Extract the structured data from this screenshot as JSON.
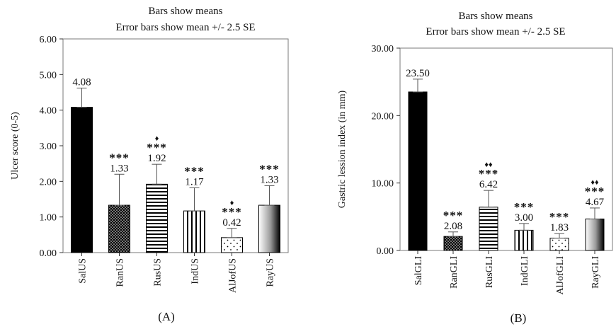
{
  "chart_data": [
    {
      "type": "bar",
      "panel_label": "(A)",
      "title": [
        "Bars show means",
        "Error bars show mean +/- 2.5 SE"
      ],
      "ylabel": "Ulcer score (0-5)",
      "ylim": [
        0,
        6
      ],
      "yticks": [
        "0.00",
        "1.00",
        "2.00",
        "3.00",
        "4.00",
        "5.00",
        "6.00"
      ],
      "categories": [
        "SalUS",
        "RanUS",
        "RusUS",
        "IndUS",
        "AlJofUS",
        "RayUS"
      ],
      "values": [
        4.08,
        1.33,
        1.92,
        1.17,
        0.42,
        1.33
      ],
      "value_labels": [
        "4.08",
        "1.33",
        "1.92",
        "1.17",
        "0.42",
        "1.33"
      ],
      "error_upper": [
        4.62,
        2.2,
        2.48,
        1.82,
        0.68,
        1.88
      ],
      "significance": [
        "",
        "***",
        "***",
        "***",
        "***",
        "***"
      ],
      "diamonds": [
        "",
        "",
        "♦",
        "",
        "♦",
        ""
      ],
      "fills": [
        "solid-black",
        "dots-dense",
        "horizontal-lines",
        "vertical-lines",
        "dots-sparse",
        "gradient"
      ]
    },
    {
      "type": "bar",
      "panel_label": "(B)",
      "title": [
        "Bars show means",
        "Error bars show mean +/- 2.5 SE"
      ],
      "ylabel": "Gastric lession index (in mm)",
      "ylim": [
        0,
        30
      ],
      "yticks": [
        "0.00",
        "10.00",
        "20.00",
        "30.00"
      ],
      "categories": [
        "SalGLI",
        "RanGLI",
        "RusGLI",
        "IndGLI",
        "AlJofGLI",
        "RayGLI"
      ],
      "values": [
        23.5,
        2.08,
        6.42,
        3.0,
        1.83,
        4.67
      ],
      "value_labels": [
        "23.50",
        "2.08",
        "6.42",
        "3.00",
        "1.83",
        "4.67"
      ],
      "error_upper": [
        25.4,
        2.75,
        8.9,
        4.0,
        2.5,
        6.3
      ],
      "significance": [
        "",
        "***",
        "***",
        "***",
        "***",
        "***"
      ],
      "diamonds": [
        "",
        "",
        "♦♦",
        "",
        "",
        "♦♦"
      ],
      "fills": [
        "solid-black",
        "dots-dense",
        "horizontal-lines",
        "vertical-lines",
        "dots-sparse",
        "gradient"
      ]
    }
  ]
}
